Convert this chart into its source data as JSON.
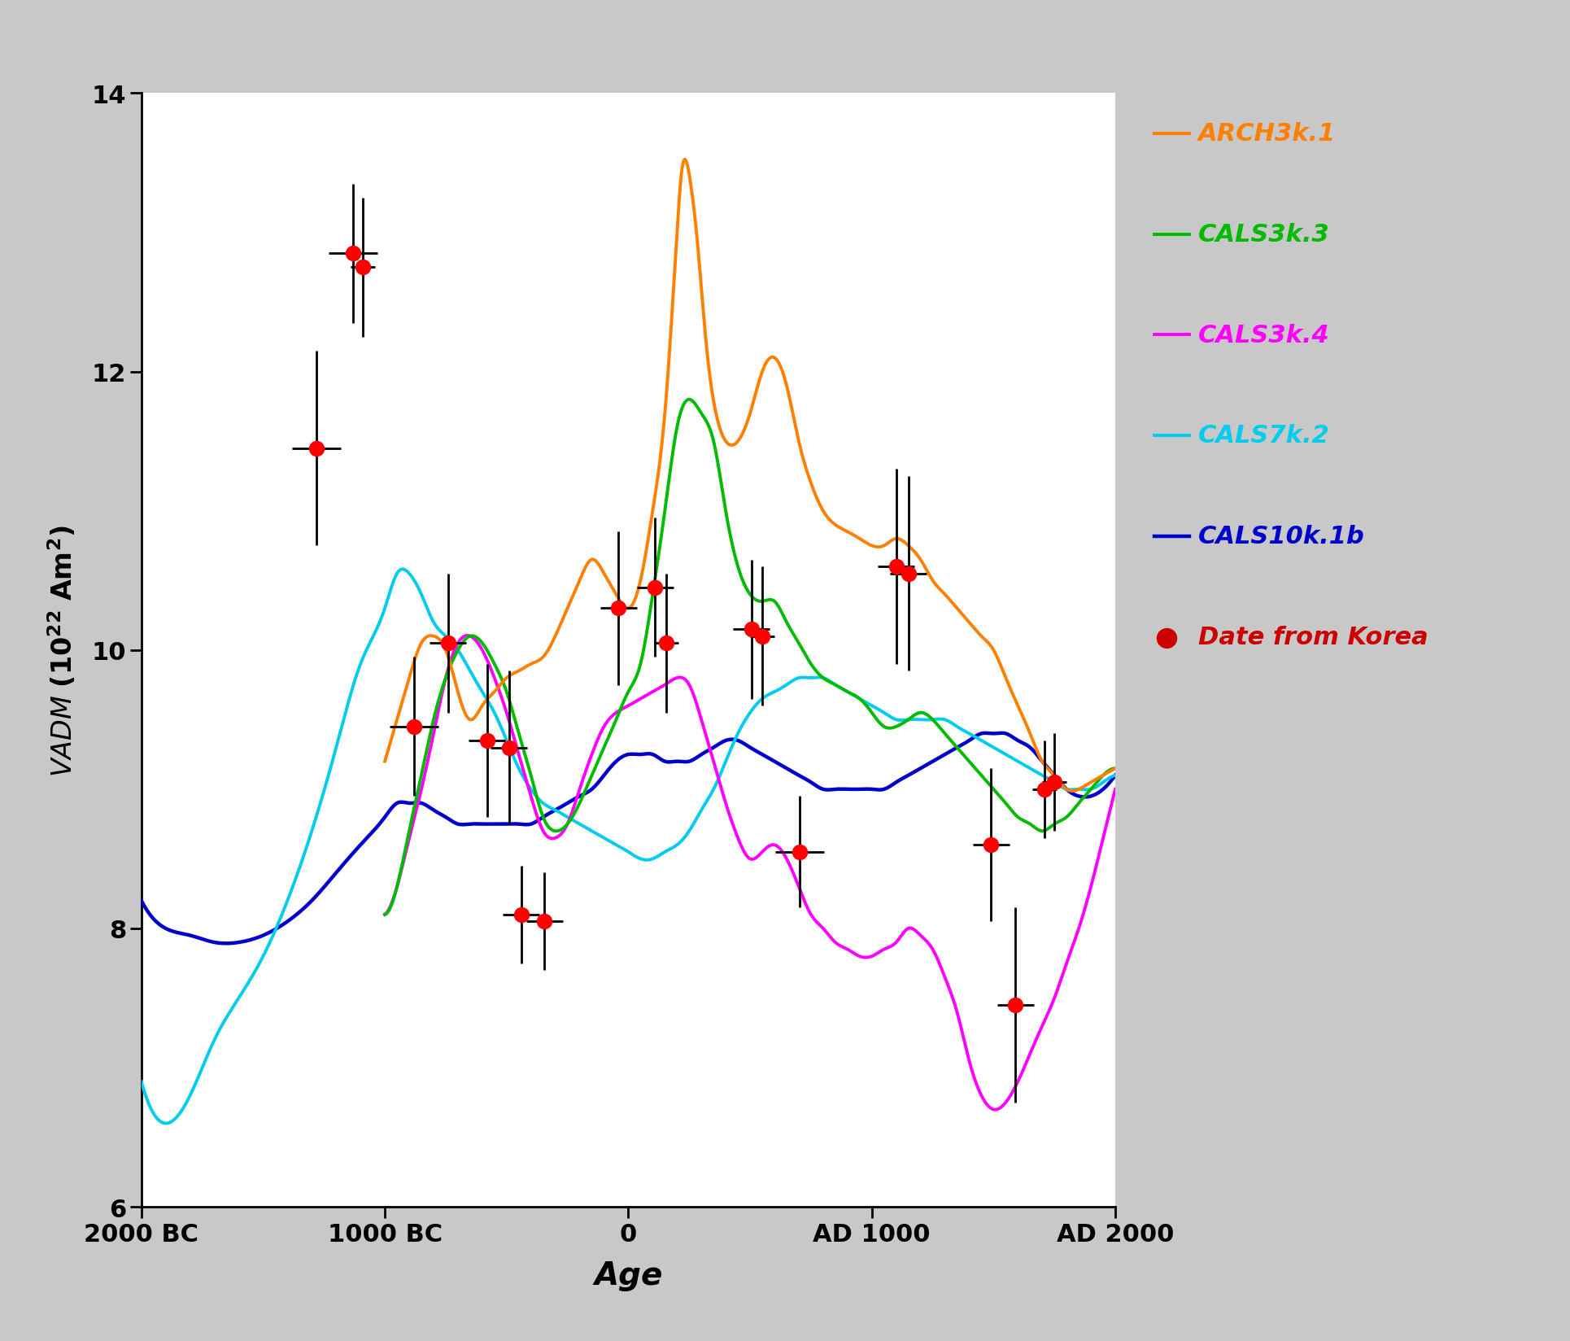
{
  "xlabel": "Age",
  "xlim": [
    -2000,
    2000
  ],
  "ylim": [
    6,
    14
  ],
  "yticks": [
    6,
    8,
    10,
    12,
    14
  ],
  "xtick_labels": [
    "2000 BC",
    "1000 BC",
    "0",
    "AD 1000",
    "AD 2000"
  ],
  "xtick_positions": [
    -2000,
    -1000,
    0,
    1000,
    2000
  ],
  "outer_bg_color": "#c8c8c8",
  "plot_bg_color": "#ffffff",
  "line_colors": {
    "ARCH3k1": "#FF8000",
    "CALS3k3": "#00BB00",
    "CALS3k4": "#FF00FF",
    "CALS7k2": "#00CCEE",
    "CALS10k1b": "#0000CC"
  },
  "legend_labels": [
    "ARCH3k.1",
    "CALS3k.3",
    "CALS3k.4",
    "CALS7k.2",
    "CALS10k.1b",
    "Date from Korea"
  ],
  "legend_colors": [
    "#FF8000",
    "#00BB00",
    "#FF00FF",
    "#00CCEE",
    "#0000CC",
    "#CC0000"
  ],
  "korea_points": {
    "x": [
      -1130,
      -1090,
      -1280,
      -880,
      -740,
      -580,
      -490,
      -440,
      -345,
      -40,
      110,
      155,
      505,
      550,
      705,
      1100,
      1150,
      1490,
      1590,
      1710,
      1750
    ],
    "y": [
      12.85,
      12.75,
      11.45,
      9.45,
      10.05,
      9.35,
      9.3,
      8.1,
      8.05,
      10.3,
      10.45,
      10.05,
      10.15,
      10.1,
      8.55,
      10.6,
      10.55,
      8.6,
      7.45,
      9.0,
      9.05
    ],
    "xerr": [
      100,
      50,
      100,
      100,
      75,
      75,
      75,
      75,
      75,
      75,
      75,
      50,
      75,
      50,
      100,
      75,
      75,
      75,
      75,
      50,
      50
    ],
    "yerr": [
      0.5,
      0.5,
      0.7,
      0.5,
      0.5,
      0.55,
      0.55,
      0.35,
      0.35,
      0.55,
      0.5,
      0.5,
      0.5,
      0.5,
      0.4,
      0.7,
      0.7,
      0.55,
      0.7,
      0.35,
      0.35
    ]
  },
  "ARCH3k1": {
    "x": [
      -1000,
      -950,
      -900,
      -850,
      -800,
      -750,
      -700,
      -650,
      -600,
      -550,
      -500,
      -450,
      -400,
      -350,
      -300,
      -250,
      -200,
      -150,
      -100,
      -50,
      0,
      50,
      100,
      150,
      175,
      200,
      220,
      240,
      260,
      280,
      300,
      320,
      340,
      360,
      400,
      450,
      500,
      550,
      600,
      650,
      700,
      750,
      800,
      850,
      900,
      950,
      1000,
      1050,
      1100,
      1150,
      1200,
      1250,
      1300,
      1350,
      1400,
      1450,
      1500,
      1550,
      1600,
      1650,
      1700,
      1750,
      1800,
      1850,
      1900,
      1950,
      2000
    ],
    "y": [
      9.2,
      9.5,
      9.8,
      10.05,
      10.1,
      10.0,
      9.7,
      9.5,
      9.6,
      9.7,
      9.8,
      9.85,
      9.9,
      9.95,
      10.1,
      10.3,
      10.5,
      10.65,
      10.55,
      10.4,
      10.3,
      10.5,
      11.0,
      11.7,
      12.3,
      13.0,
      13.45,
      13.5,
      13.3,
      13.0,
      12.6,
      12.2,
      11.9,
      11.7,
      11.5,
      11.5,
      11.7,
      12.0,
      12.1,
      11.9,
      11.5,
      11.2,
      11.0,
      10.9,
      10.85,
      10.8,
      10.75,
      10.75,
      10.8,
      10.75,
      10.65,
      10.5,
      10.4,
      10.3,
      10.2,
      10.1,
      10.0,
      9.8,
      9.6,
      9.4,
      9.2,
      9.1,
      9.0,
      9.0,
      9.05,
      9.1,
      9.15
    ]
  },
  "CALS3k3": {
    "x": [
      -1000,
      -950,
      -900,
      -850,
      -800,
      -750,
      -700,
      -650,
      -600,
      -550,
      -500,
      -450,
      -400,
      -350,
      -300,
      -250,
      -200,
      -150,
      -100,
      -50,
      0,
      50,
      100,
      150,
      200,
      250,
      300,
      350,
      400,
      450,
      500,
      550,
      600,
      650,
      700,
      750,
      800,
      850,
      900,
      950,
      1000,
      1050,
      1100,
      1150,
      1200,
      1250,
      1300,
      1350,
      1400,
      1450,
      1500,
      1550,
      1600,
      1650,
      1700,
      1750,
      1800,
      1850,
      1900,
      1950,
      2000
    ],
    "y": [
      8.1,
      8.3,
      8.7,
      9.1,
      9.5,
      9.8,
      10.0,
      10.1,
      10.05,
      9.9,
      9.7,
      9.4,
      9.1,
      8.8,
      8.7,
      8.75,
      8.9,
      9.1,
      9.3,
      9.5,
      9.7,
      9.9,
      10.4,
      11.0,
      11.6,
      11.8,
      11.7,
      11.5,
      11.0,
      10.6,
      10.4,
      10.35,
      10.35,
      10.2,
      10.05,
      9.9,
      9.8,
      9.75,
      9.7,
      9.65,
      9.55,
      9.45,
      9.45,
      9.5,
      9.55,
      9.5,
      9.4,
      9.3,
      9.2,
      9.1,
      9.0,
      8.9,
      8.8,
      8.75,
      8.7,
      8.75,
      8.8,
      8.9,
      9.0,
      9.1,
      9.15
    ]
  },
  "CALS3k4": {
    "x": [
      -1000,
      -950,
      -900,
      -850,
      -800,
      -750,
      -700,
      -650,
      -600,
      -550,
      -500,
      -450,
      -400,
      -350,
      -300,
      -250,
      -200,
      -150,
      -100,
      -50,
      0,
      50,
      100,
      150,
      200,
      250,
      300,
      350,
      400,
      450,
      500,
      550,
      600,
      650,
      700,
      750,
      800,
      850,
      900,
      950,
      1000,
      1050,
      1100,
      1150,
      1200,
      1250,
      1300,
      1350,
      1400,
      1450,
      1500,
      1550,
      1600,
      1650,
      1700,
      1750,
      1800,
      1850,
      1900,
      1950,
      2000
    ],
    "y": [
      8.1,
      8.3,
      8.65,
      9.0,
      9.4,
      9.8,
      10.05,
      10.1,
      10.0,
      9.8,
      9.55,
      9.25,
      8.95,
      8.7,
      8.65,
      8.75,
      9.0,
      9.25,
      9.45,
      9.55,
      9.6,
      9.65,
      9.7,
      9.75,
      9.8,
      9.75,
      9.5,
      9.2,
      8.9,
      8.65,
      8.5,
      8.55,
      8.6,
      8.5,
      8.3,
      8.1,
      8.0,
      7.9,
      7.85,
      7.8,
      7.8,
      7.85,
      7.9,
      8.0,
      7.95,
      7.85,
      7.65,
      7.4,
      7.05,
      6.8,
      6.7,
      6.75,
      6.9,
      7.1,
      7.3,
      7.5,
      7.75,
      8.0,
      8.3,
      8.65,
      9.0
    ]
  },
  "CALS7k2": {
    "x": [
      -2000,
      -1900,
      -1800,
      -1700,
      -1600,
      -1500,
      -1400,
      -1300,
      -1200,
      -1100,
      -1000,
      -950,
      -900,
      -850,
      -800,
      -750,
      -700,
      -650,
      -600,
      -550,
      -500,
      -450,
      -400,
      -350,
      -300,
      -250,
      -200,
      -150,
      -100,
      -50,
      0,
      50,
      100,
      150,
      200,
      250,
      300,
      350,
      400,
      450,
      500,
      550,
      600,
      650,
      700,
      750,
      800,
      850,
      900,
      950,
      1000,
      1050,
      1100,
      1150,
      1200,
      1250,
      1300,
      1350,
      1400,
      1450,
      1500,
      1550,
      1600,
      1650,
      1700,
      1750,
      1800,
      1850,
      1900,
      1950,
      2000
    ],
    "y": [
      6.9,
      6.6,
      6.8,
      7.2,
      7.5,
      7.8,
      8.2,
      8.7,
      9.3,
      9.9,
      10.3,
      10.55,
      10.55,
      10.4,
      10.2,
      10.1,
      10.0,
      9.85,
      9.7,
      9.55,
      9.35,
      9.15,
      9.0,
      8.9,
      8.85,
      8.8,
      8.75,
      8.7,
      8.65,
      8.6,
      8.55,
      8.5,
      8.5,
      8.55,
      8.6,
      8.7,
      8.85,
      9.0,
      9.2,
      9.4,
      9.55,
      9.65,
      9.7,
      9.75,
      9.8,
      9.8,
      9.8,
      9.75,
      9.7,
      9.65,
      9.6,
      9.55,
      9.5,
      9.5,
      9.5,
      9.5,
      9.5,
      9.45,
      9.4,
      9.35,
      9.3,
      9.25,
      9.2,
      9.15,
      9.1,
      9.05,
      9.0,
      9.0,
      9.0,
      9.05,
      9.1
    ]
  },
  "CALS10k1b": {
    "x": [
      -2000,
      -1900,
      -1800,
      -1700,
      -1600,
      -1500,
      -1400,
      -1300,
      -1200,
      -1100,
      -1000,
      -950,
      -900,
      -850,
      -800,
      -750,
      -700,
      -650,
      -600,
      -550,
      -500,
      -450,
      -400,
      -350,
      -300,
      -250,
      -200,
      -150,
      -100,
      -50,
      0,
      50,
      100,
      150,
      200,
      250,
      300,
      350,
      400,
      450,
      500,
      550,
      600,
      650,
      700,
      750,
      800,
      850,
      900,
      950,
      1000,
      1050,
      1100,
      1150,
      1200,
      1250,
      1300,
      1350,
      1400,
      1450,
      1500,
      1550,
      1600,
      1650,
      1700,
      1750,
      1800,
      1850,
      1900,
      1950,
      2000
    ],
    "y": [
      8.2,
      8.0,
      7.95,
      7.9,
      7.9,
      7.95,
      8.05,
      8.2,
      8.4,
      8.6,
      8.8,
      8.9,
      8.9,
      8.9,
      8.85,
      8.8,
      8.75,
      8.75,
      8.75,
      8.75,
      8.75,
      8.75,
      8.75,
      8.8,
      8.85,
      8.9,
      8.95,
      9.0,
      9.1,
      9.2,
      9.25,
      9.25,
      9.25,
      9.2,
      9.2,
      9.2,
      9.25,
      9.3,
      9.35,
      9.35,
      9.3,
      9.25,
      9.2,
      9.15,
      9.1,
      9.05,
      9.0,
      9.0,
      9.0,
      9.0,
      9.0,
      9.0,
      9.05,
      9.1,
      9.15,
      9.2,
      9.25,
      9.3,
      9.35,
      9.4,
      9.4,
      9.4,
      9.35,
      9.3,
      9.2,
      9.1,
      9.0,
      8.95,
      8.95,
      9.0,
      9.1
    ]
  }
}
